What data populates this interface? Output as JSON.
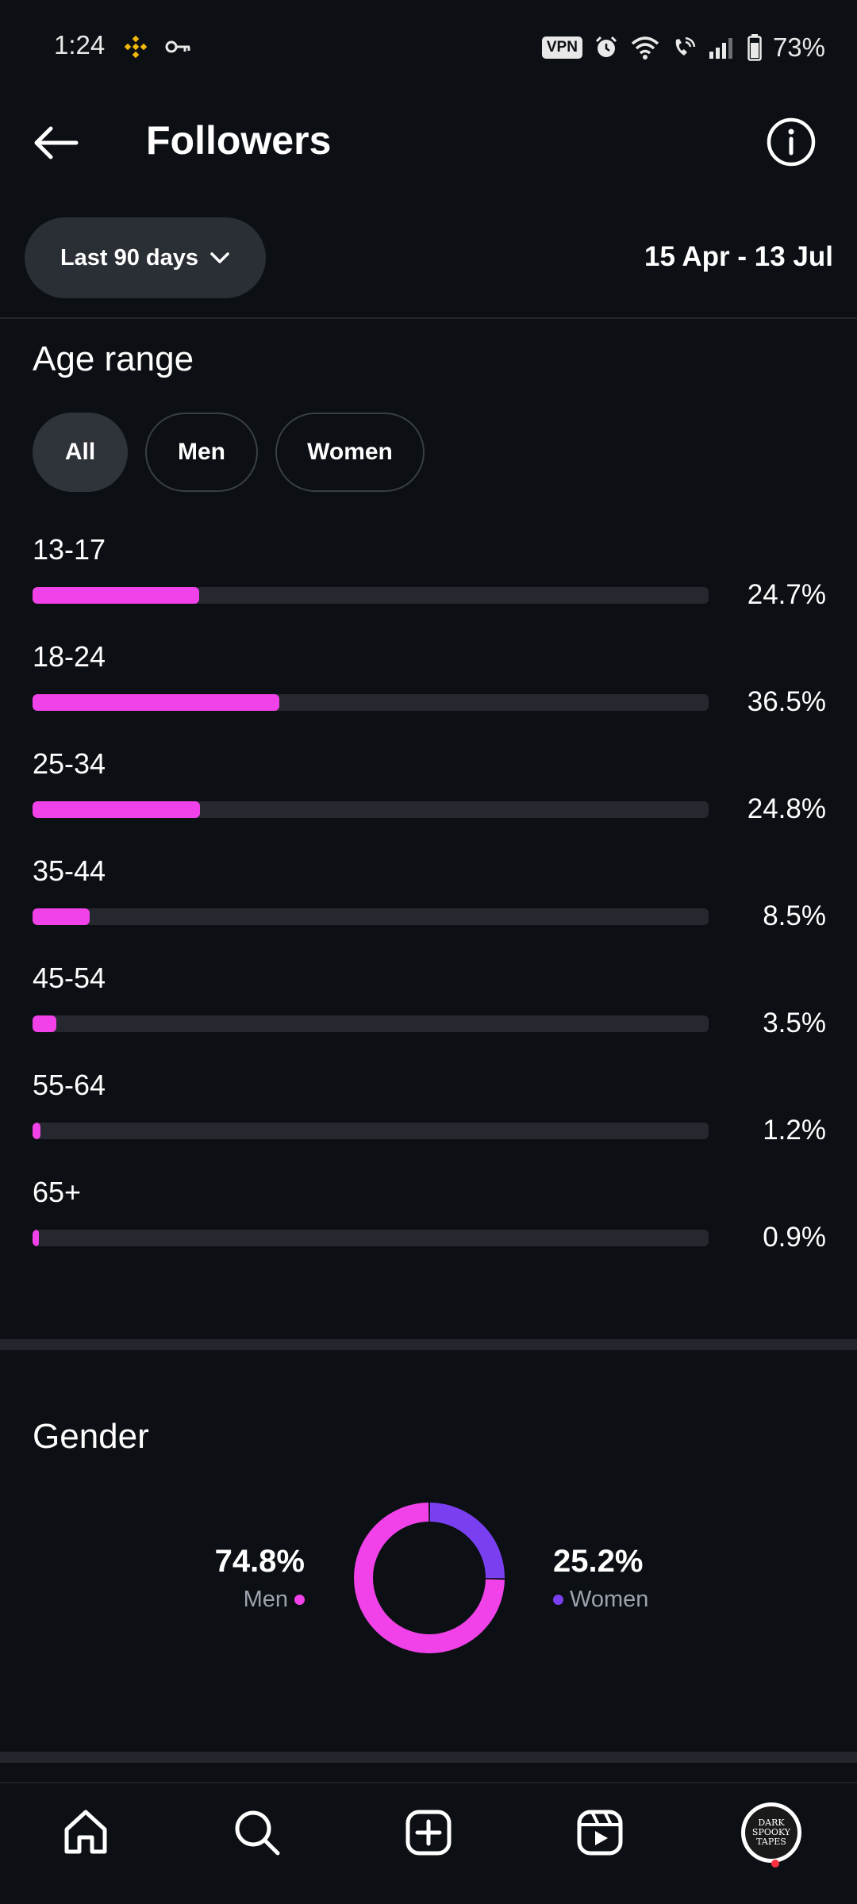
{
  "status_bar": {
    "time": "1:24",
    "vpn": "VPN",
    "battery": "73%",
    "icons": [
      "binance-icon",
      "key-icon",
      "vpn-icon",
      "alarm-icon",
      "wifi-icon",
      "wifi-call-icon",
      "signal-icon",
      "battery-icon"
    ]
  },
  "header": {
    "title": "Followers"
  },
  "filters": {
    "range_label": "Last 90 days",
    "date_range": "15 Apr - 13 Jul"
  },
  "age_section": {
    "title": "Age range",
    "chips": [
      {
        "label": "All",
        "active": true
      },
      {
        "label": "Men",
        "active": false
      },
      {
        "label": "Women",
        "active": false
      }
    ]
  },
  "chart_data": [
    {
      "type": "bar",
      "title": "Age range",
      "categories": [
        "13-17",
        "18-24",
        "25-34",
        "35-44",
        "45-54",
        "55-64",
        "65+"
      ],
      "values": [
        24.7,
        36.5,
        24.8,
        8.5,
        3.5,
        1.2,
        0.9
      ],
      "value_labels": [
        "24.7%",
        "36.5%",
        "24.8%",
        "8.5%",
        "3.5%",
        "1.2%",
        "0.9%"
      ],
      "orientation": "horizontal",
      "xlim": [
        0,
        100
      ],
      "color": "#f042e8"
    },
    {
      "type": "pie",
      "title": "Gender",
      "categories": [
        "Men",
        "Women"
      ],
      "values": [
        74.8,
        25.2
      ],
      "value_labels": [
        "74.8%",
        "25.2%"
      ],
      "colors": [
        "#f042e8",
        "#7b3ff2"
      ],
      "style": "donut"
    }
  ],
  "gender_section": {
    "title": "Gender",
    "men_value": "74.8%",
    "men_label": "Men",
    "women_value": "25.2%",
    "women_label": "Women"
  },
  "bottom_nav": {
    "items": [
      "home-icon",
      "search-icon",
      "create-icon",
      "reels-icon",
      "profile-avatar"
    ],
    "avatar_text": "DARK SPOOKY TAPES"
  },
  "colors": {
    "background": "#0c0f14",
    "accent_pink": "#f042e8",
    "accent_purple": "#7b3ff2",
    "track": "#25282e"
  }
}
